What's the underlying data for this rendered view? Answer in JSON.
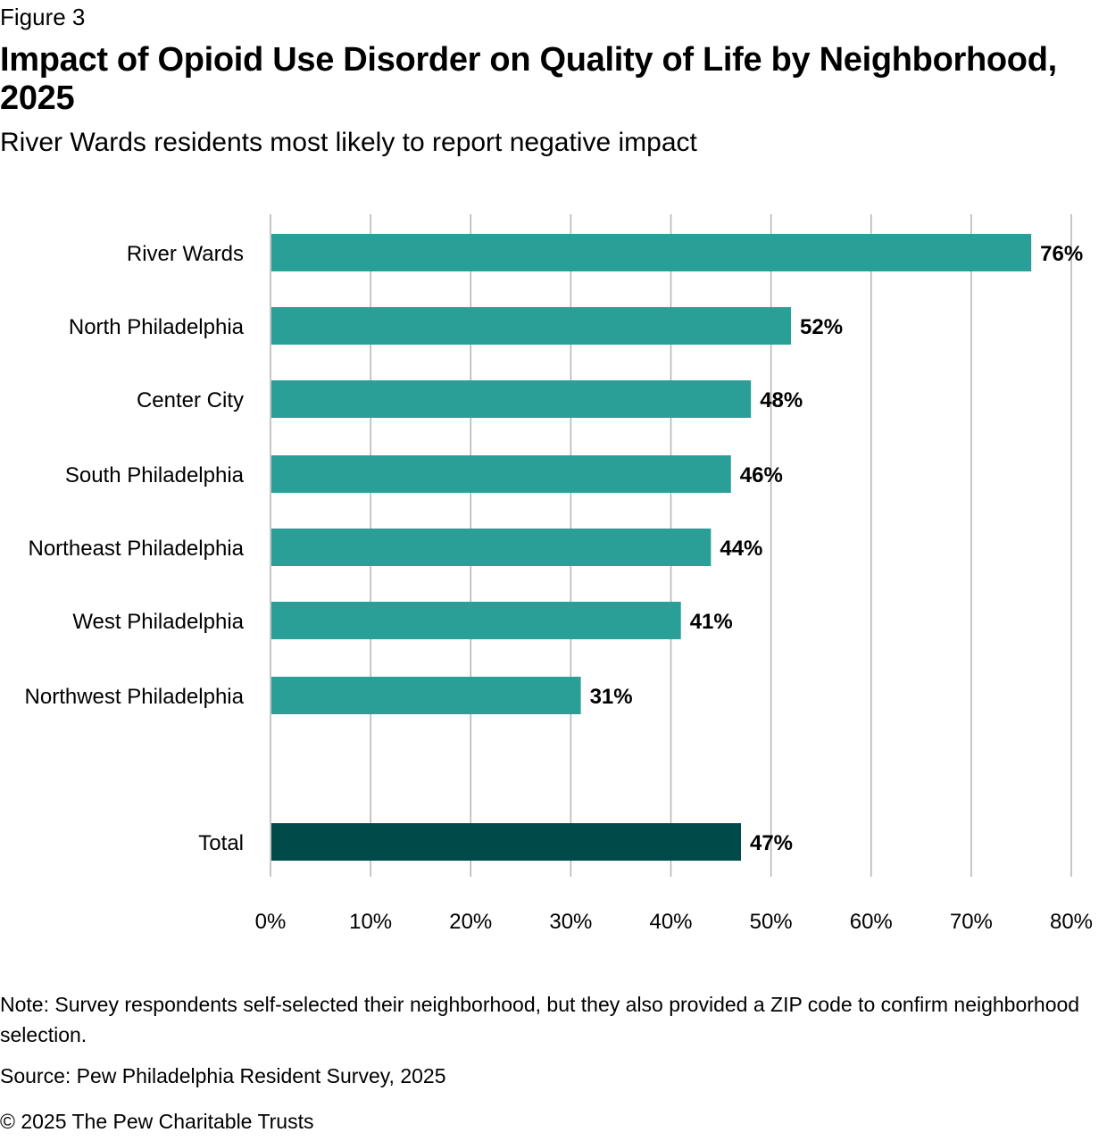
{
  "figure_label": "Figure 3",
  "title": "Impact of Opioid Use Disorder on Quality of Life by Neighborhood, 2025",
  "subtitle": "River Wards residents most likely to report negative impact",
  "note": "Note: Survey respondents self-selected their neighborhood, but they also provided a ZIP code to confirm neighborhood selection.",
  "source": "Source: Pew Philadelphia Resident Survey, 2025",
  "copyright": "© 2025 The Pew Charitable Trusts",
  "colors": {
    "bar": "#2a9f98",
    "total_bar": "#004b4a",
    "grid": "#b3b3b3"
  },
  "chart_data": {
    "type": "bar",
    "orientation": "horizontal",
    "categories": [
      "River Wards",
      "North Philadelphia",
      "Center City",
      "South Philadelphia",
      "Northeast Philadelphia",
      "West Philadelphia",
      "Northwest Philadelphia",
      "Total"
    ],
    "values": [
      76,
      52,
      48,
      46,
      44,
      41,
      31,
      47
    ],
    "value_labels": [
      "76%",
      "52%",
      "48%",
      "46%",
      "44%",
      "41%",
      "31%",
      "47%"
    ],
    "highlighted_category": "Total",
    "xlim": [
      0,
      80
    ],
    "xticks": [
      0,
      10,
      20,
      30,
      40,
      50,
      60,
      70,
      80
    ],
    "xtick_labels": [
      "0%",
      "10%",
      "20%",
      "30%",
      "40%",
      "50%",
      "60%",
      "70%",
      "80%"
    ],
    "grid": true
  }
}
